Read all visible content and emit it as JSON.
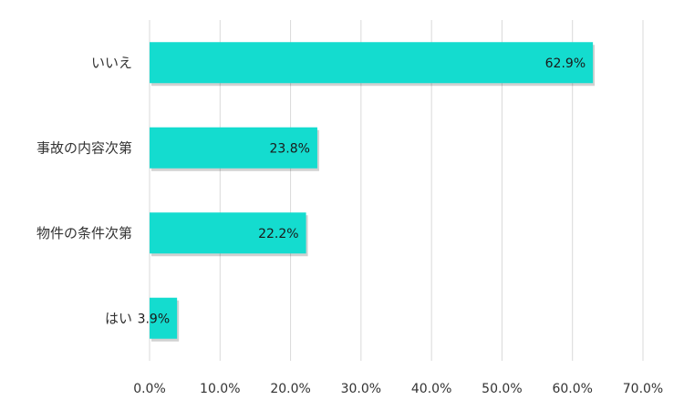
{
  "chart_data": {
    "type": "bar",
    "orientation": "horizontal",
    "categories": [
      "いいえ",
      "事故の内容次第",
      "物件の条件次第",
      "はい"
    ],
    "values": [
      62.9,
      23.8,
      22.2,
      3.9
    ],
    "data_labels": [
      "62.9%",
      "23.8%",
      "22.2%",
      "3.9%"
    ],
    "xlim": [
      0,
      70
    ],
    "x_ticks": [
      0,
      10,
      20,
      30,
      40,
      50,
      60,
      70
    ],
    "x_tick_labels": [
      "0.0%",
      "10.0%",
      "20.0%",
      "30.0%",
      "40.0%",
      "50.0%",
      "60.0%",
      "70.0%"
    ],
    "grid": "vertical",
    "legend": "none",
    "bar_color": "#14dccf",
    "grid_color": "#d9d9d9",
    "title": "",
    "xlabel": "",
    "ylabel": ""
  }
}
